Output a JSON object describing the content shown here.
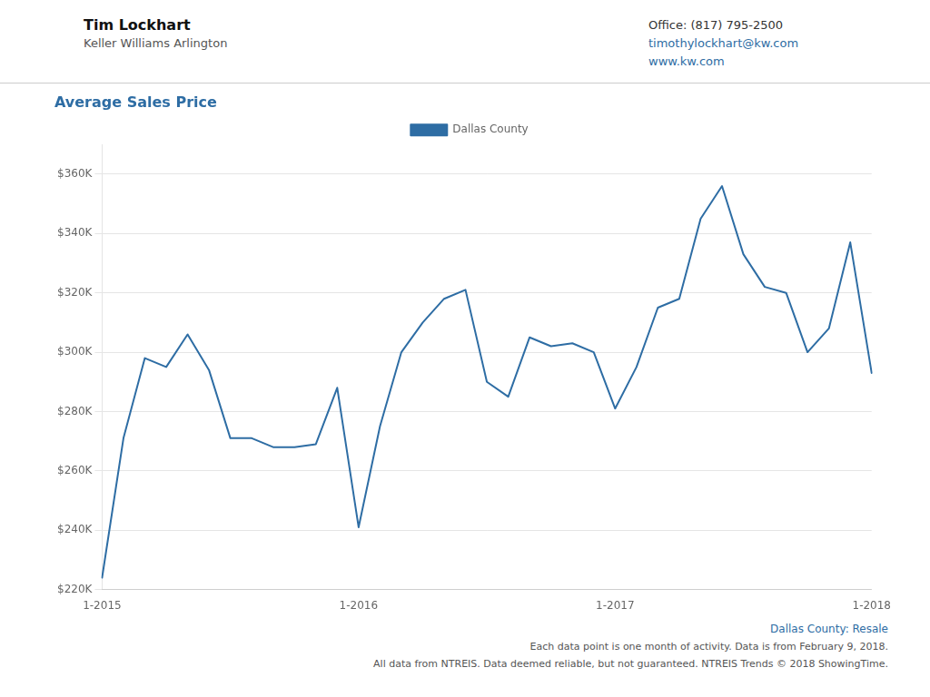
{
  "chart_data": {
    "type": "line",
    "title": "Average Sales Price",
    "categories": [
      "1-2015",
      null,
      null,
      null,
      null,
      null,
      null,
      null,
      null,
      null,
      null,
      null,
      "1-2016",
      null,
      null,
      null,
      null,
      null,
      null,
      null,
      null,
      null,
      null,
      null,
      "1-2017",
      null,
      null,
      null,
      null,
      null,
      null,
      null,
      null,
      null,
      null,
      null,
      "1-2018"
    ],
    "series": [
      {
        "name": "Dallas County",
        "color": "#2e6da4",
        "values": [
          224000,
          271000,
          298000,
          295000,
          306000,
          294000,
          271000,
          271000,
          268000,
          268000,
          269000,
          288000,
          241000,
          275000,
          300000,
          310000,
          318000,
          321000,
          290000,
          285000,
          305000,
          302000,
          303000,
          300000,
          281000,
          295000,
          315000,
          318000,
          345000,
          356000,
          333000,
          322000,
          320000,
          300000,
          308000,
          337000,
          293000
        ]
      }
    ],
    "ylim": [
      220000,
      370000
    ],
    "yticks": [
      {
        "value": 220000,
        "label": "$220K"
      },
      {
        "value": 240000,
        "label": "$240K"
      },
      {
        "value": 260000,
        "label": "$260K"
      },
      {
        "value": 280000,
        "label": "$280K"
      },
      {
        "value": 300000,
        "label": "$300K"
      },
      {
        "value": 320000,
        "label": "$320K"
      },
      {
        "value": 340000,
        "label": "$340K"
      },
      {
        "value": 360000,
        "label": "$360K"
      }
    ],
    "grid": true,
    "legend": "top",
    "annotations": [
      "Tim Lockhart",
      "Keller Williams Arlington",
      "Office: (817) 795-2500",
      "timothylockhart@kw.com",
      "www.kw.com",
      "Dallas County: Resale",
      "Each data point is one month of activity. Data is from February 9, 2018.",
      "All data from NTREIS. Data deemed reliable, but not guaranteed. NTREIS Trends © 2018 ShowingTime."
    ]
  }
}
